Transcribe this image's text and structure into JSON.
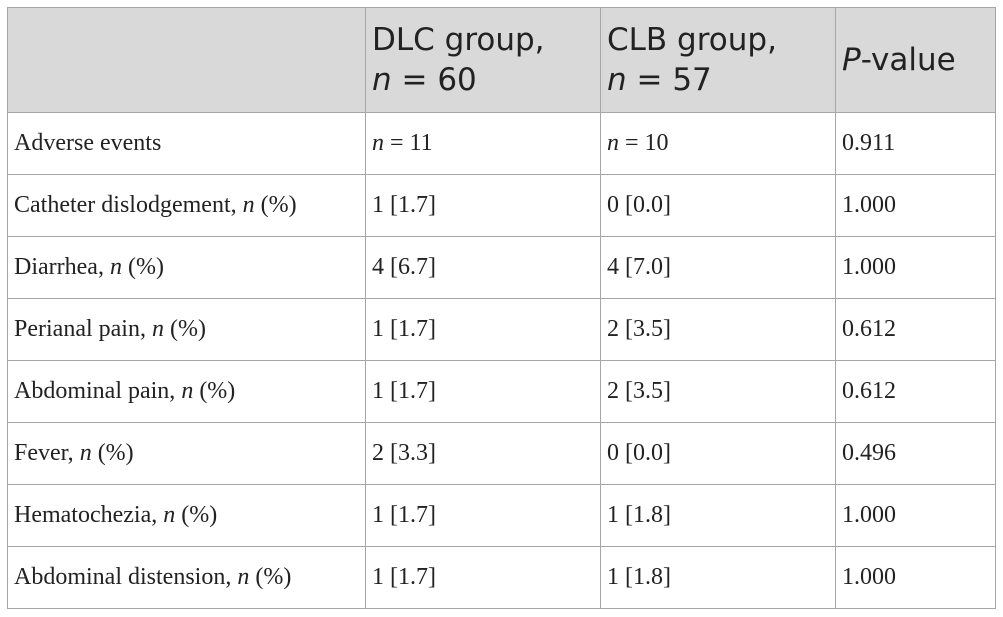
{
  "table": {
    "header": [
      "",
      "DLC group, n = 60",
      "CLB group, n = 57",
      "P-value"
    ],
    "rows": [
      [
        "Adverse events",
        "n = 11",
        "n = 10",
        "0.911"
      ],
      [
        "Catheter dislodgement, n (%)",
        "1 [1.7]",
        "0 [0.0]",
        "1.000"
      ],
      [
        "Diarrhea, n (%)",
        "4 [6.7]",
        "4 [7.0]",
        "1.000"
      ],
      [
        "Perianal pain, n (%)",
        "1 [1.7]",
        "2 [3.5]",
        "0.612"
      ],
      [
        "Abdominal pain, n (%)",
        "1 [1.7]",
        "2 [3.5]",
        "0.612"
      ],
      [
        "Fever, n (%)",
        "2 [3.3]",
        "0 [0.0]",
        "0.496"
      ],
      [
        "Hematochezia, n (%)",
        "1 [1.7]",
        "1 [1.8]",
        "1.000"
      ],
      [
        "Abdominal distension, n (%)",
        "1 [1.7]",
        "1 [1.8]",
        "1.000"
      ]
    ]
  }
}
